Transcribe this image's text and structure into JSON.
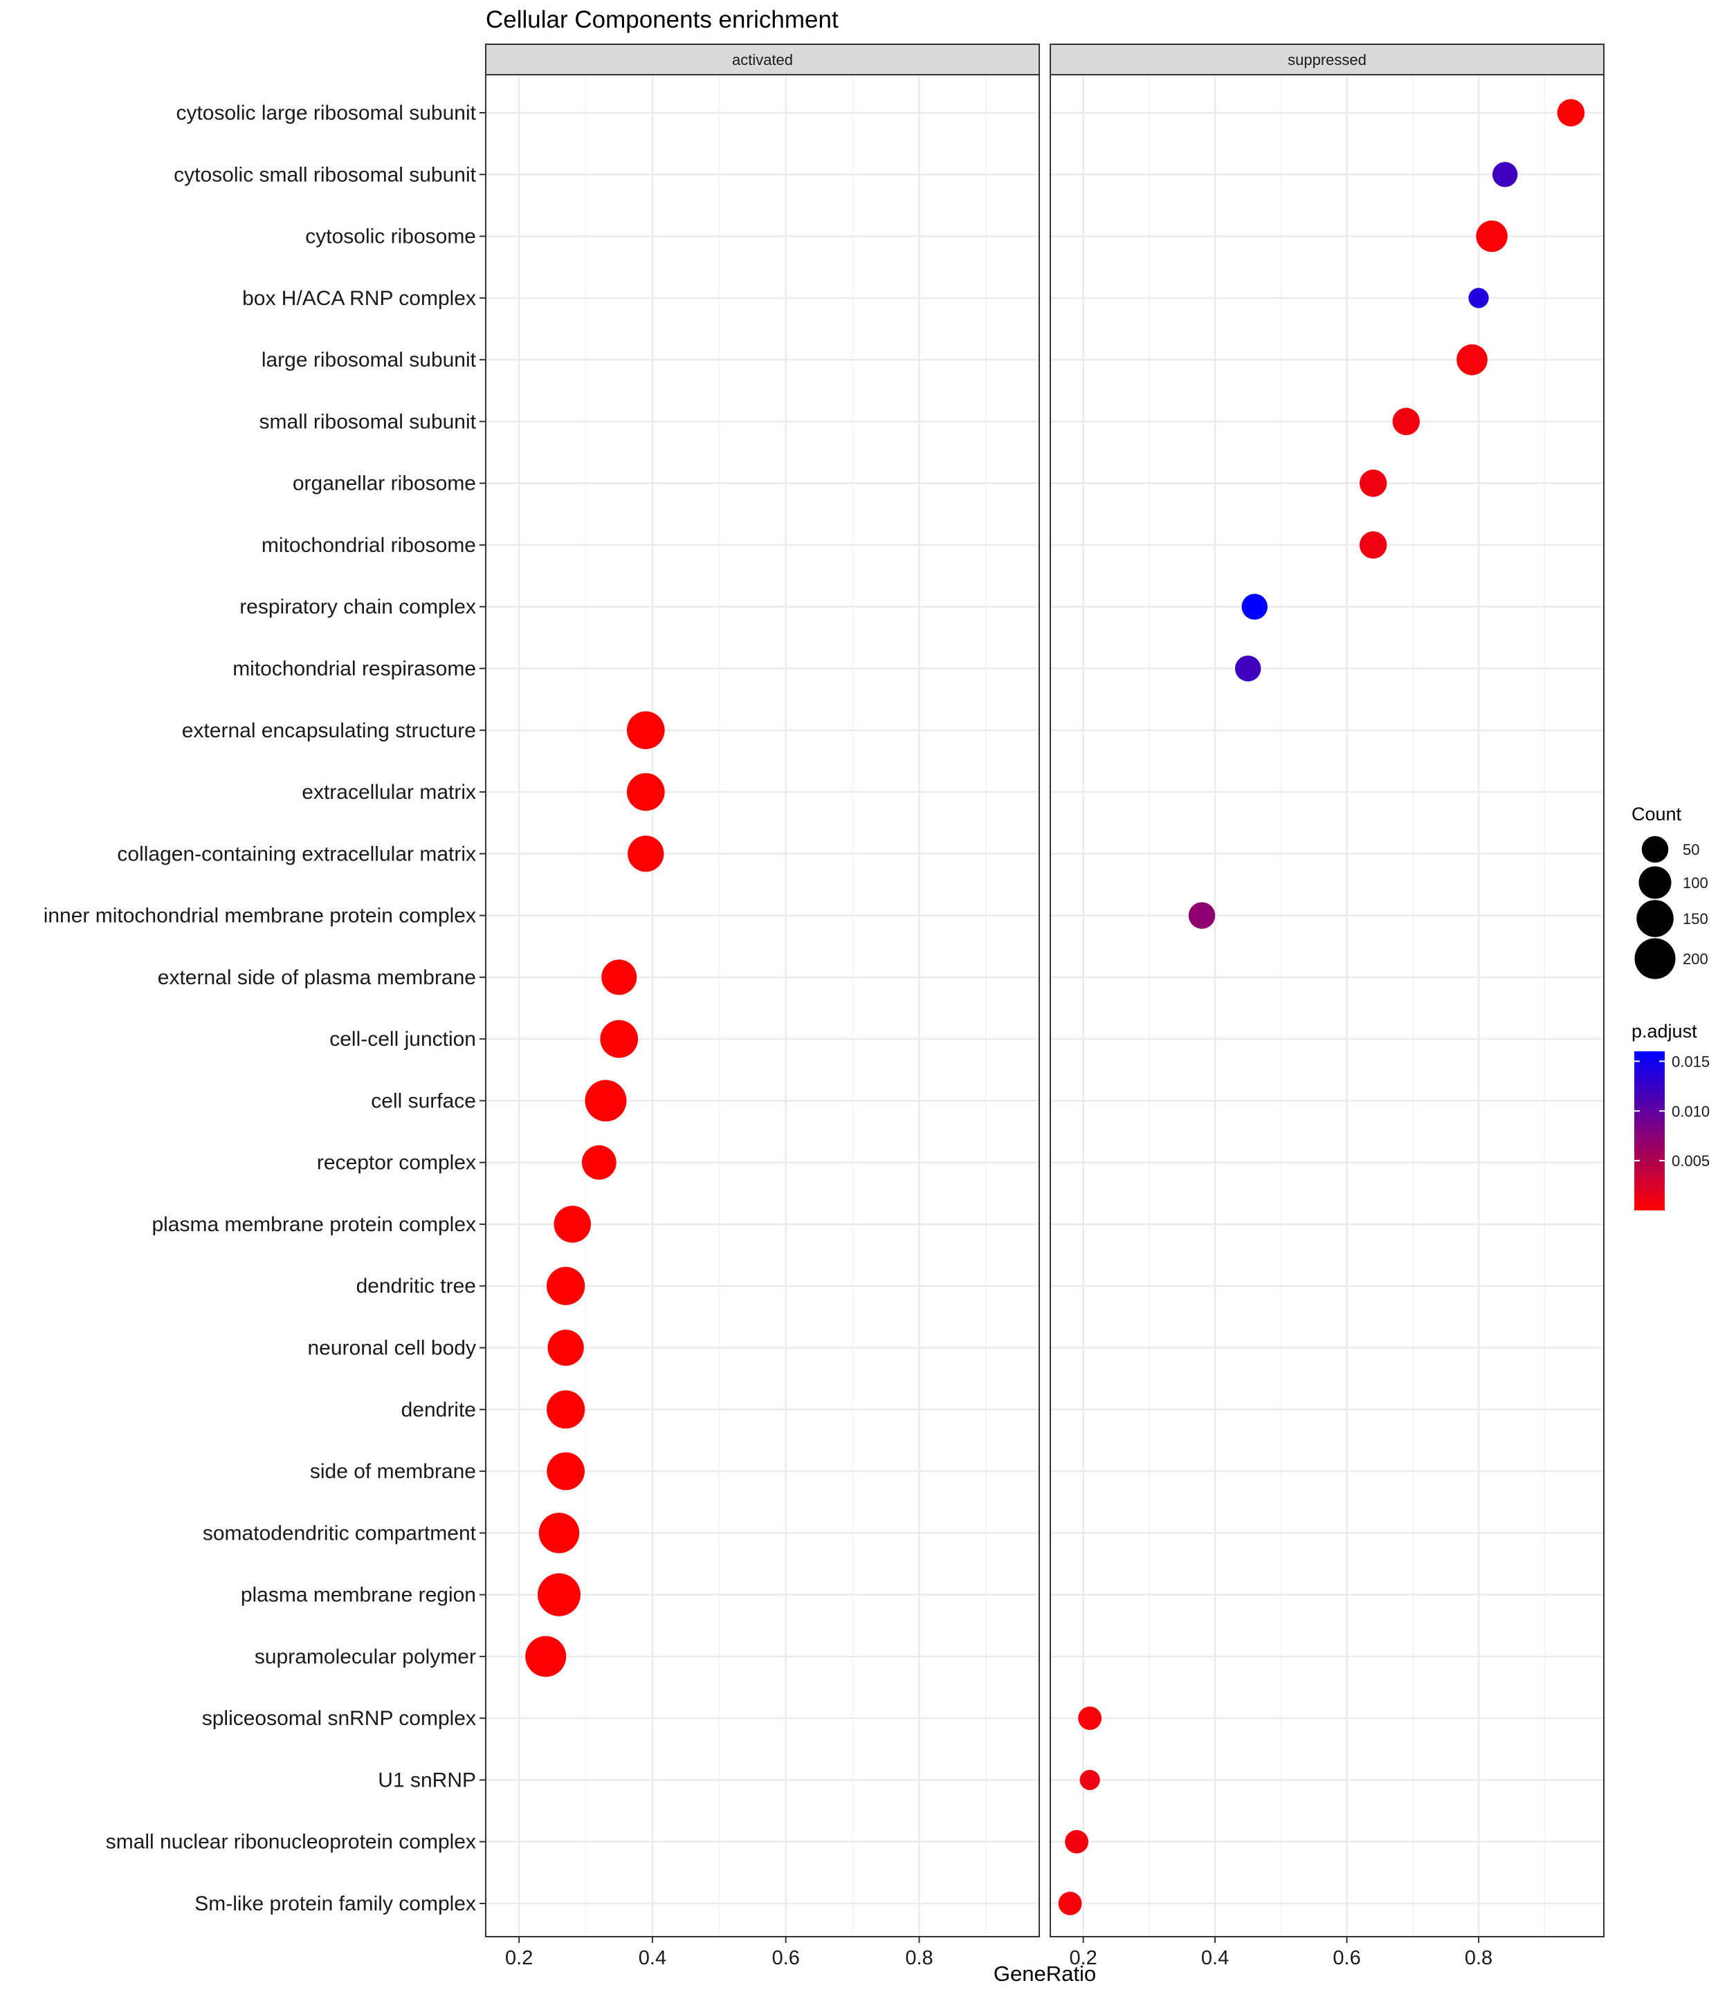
{
  "chart_data": {
    "type": "scatter",
    "title": "Cellular Components enrichment",
    "xlabel": "GeneRatio",
    "ylabel": "",
    "facets": [
      "activated",
      "suppressed"
    ],
    "xlim": {
      "activated": [
        0.15,
        0.98
      ],
      "suppressed": [
        0.15,
        0.99
      ]
    },
    "xticks": [
      0.2,
      0.4,
      0.6,
      0.8
    ],
    "xtick_labels": [
      "0.2",
      "0.4",
      "0.6",
      "0.8"
    ],
    "grid": true,
    "categories": [
      "cytosolic large ribosomal subunit",
      "cytosolic small ribosomal subunit",
      "cytosolic ribosome",
      "box H/ACA RNP complex",
      "large ribosomal subunit",
      "small ribosomal subunit",
      "organellar ribosome",
      "mitochondrial ribosome",
      "respiratory chain complex",
      "mitochondrial respirasome",
      "external encapsulating structure",
      "extracellular matrix",
      "collagen-containing extracellular matrix",
      "inner mitochondrial membrane protein complex",
      "external side of plasma membrane",
      "cell-cell junction",
      "cell surface",
      "receptor complex",
      "plasma membrane protein complex",
      "dendritic tree",
      "neuronal cell body",
      "dendrite",
      "side of membrane",
      "somatodendritic compartment",
      "plasma membrane region",
      "supramolecular polymer",
      "spliceosomal snRNP complex",
      "U1 snRNP",
      "small nuclear ribonucleoprotein complex",
      "Sm-like protein family complex"
    ],
    "points": [
      {
        "facet": "suppressed",
        "category": "cytosolic large ribosomal subunit",
        "x": 0.94,
        "count": 55,
        "p_adjust": 0.0003
      },
      {
        "facet": "suppressed",
        "category": "cytosolic small ribosomal subunit",
        "x": 0.84,
        "count": 40,
        "p_adjust": 0.012
      },
      {
        "facet": "suppressed",
        "category": "cytosolic ribosome",
        "x": 0.82,
        "count": 90,
        "p_adjust": 0.0004
      },
      {
        "facet": "suppressed",
        "category": "box H/ACA RNP complex",
        "x": 0.8,
        "count": 15,
        "p_adjust": 0.014
      },
      {
        "facet": "suppressed",
        "category": "large ribosomal subunit",
        "x": 0.79,
        "count": 85,
        "p_adjust": 0.0005
      },
      {
        "facet": "suppressed",
        "category": "small ribosomal subunit",
        "x": 0.69,
        "count": 55,
        "p_adjust": 0.0008
      },
      {
        "facet": "suppressed",
        "category": "organellar ribosome",
        "x": 0.64,
        "count": 55,
        "p_adjust": 0.001
      },
      {
        "facet": "suppressed",
        "category": "mitochondrial ribosome",
        "x": 0.64,
        "count": 55,
        "p_adjust": 0.001
      },
      {
        "facet": "suppressed",
        "category": "respiratory chain complex",
        "x": 0.46,
        "count": 45,
        "p_adjust": 0.016
      },
      {
        "facet": "suppressed",
        "category": "mitochondrial respirasome",
        "x": 0.45,
        "count": 45,
        "p_adjust": 0.012
      },
      {
        "facet": "activated",
        "category": "external encapsulating structure",
        "x": 0.39,
        "count": 160,
        "p_adjust": 0.0001
      },
      {
        "facet": "activated",
        "category": "extracellular matrix",
        "x": 0.39,
        "count": 160,
        "p_adjust": 0.0001
      },
      {
        "facet": "activated",
        "category": "collagen-containing extracellular matrix",
        "x": 0.39,
        "count": 140,
        "p_adjust": 0.0001
      },
      {
        "facet": "suppressed",
        "category": "inner mitochondrial membrane protein complex",
        "x": 0.38,
        "count": 50,
        "p_adjust": 0.007
      },
      {
        "facet": "activated",
        "category": "external side of plasma membrane",
        "x": 0.35,
        "count": 130,
        "p_adjust": 0.0001
      },
      {
        "facet": "activated",
        "category": "cell-cell junction",
        "x": 0.35,
        "count": 160,
        "p_adjust": 0.0001
      },
      {
        "facet": "activated",
        "category": "cell surface",
        "x": 0.33,
        "count": 210,
        "p_adjust": 0.0001
      },
      {
        "facet": "activated",
        "category": "receptor complex",
        "x": 0.32,
        "count": 120,
        "p_adjust": 0.0001
      },
      {
        "facet": "activated",
        "category": "plasma membrane protein complex",
        "x": 0.28,
        "count": 150,
        "p_adjust": 0.0001
      },
      {
        "facet": "activated",
        "category": "dendritic tree",
        "x": 0.27,
        "count": 165,
        "p_adjust": 0.0001
      },
      {
        "facet": "activated",
        "category": "neuronal cell body",
        "x": 0.27,
        "count": 140,
        "p_adjust": 0.0001
      },
      {
        "facet": "activated",
        "category": "dendrite",
        "x": 0.27,
        "count": 165,
        "p_adjust": 0.0001
      },
      {
        "facet": "activated",
        "category": "side of membrane",
        "x": 0.27,
        "count": 160,
        "p_adjust": 0.0001
      },
      {
        "facet": "activated",
        "category": "somatodendritic compartment",
        "x": 0.26,
        "count": 195,
        "p_adjust": 0.0001
      },
      {
        "facet": "activated",
        "category": "plasma membrane region",
        "x": 0.26,
        "count": 230,
        "p_adjust": 0.0001
      },
      {
        "facet": "activated",
        "category": "supramolecular polymer",
        "x": 0.24,
        "count": 200,
        "p_adjust": 0.0001
      },
      {
        "facet": "suppressed",
        "category": "spliceosomal snRNP complex",
        "x": 0.21,
        "count": 30,
        "p_adjust": 0.0005
      },
      {
        "facet": "suppressed",
        "category": "U1 snRNP",
        "x": 0.21,
        "count": 15,
        "p_adjust": 0.001
      },
      {
        "facet": "suppressed",
        "category": "small nuclear ribonucleoprotein complex",
        "x": 0.19,
        "count": 30,
        "p_adjust": 0.0008
      },
      {
        "facet": "suppressed",
        "category": "Sm-like protein family complex",
        "x": 0.18,
        "count": 30,
        "p_adjust": 0.0005
      }
    ],
    "legend_count": {
      "title": "Count",
      "values": [
        50,
        100,
        150,
        200
      ],
      "labels": [
        "50",
        "100",
        "150",
        "200"
      ]
    },
    "legend_padjust": {
      "title": "p.adjust",
      "range": [
        0.0,
        0.016
      ],
      "ticks": [
        0.005,
        0.01,
        0.015
      ],
      "labels": [
        "0.005",
        "0.010",
        "0.015"
      ],
      "low_color": "#ff0000",
      "high_color": "#0000ff"
    },
    "legend_placement": "right"
  }
}
